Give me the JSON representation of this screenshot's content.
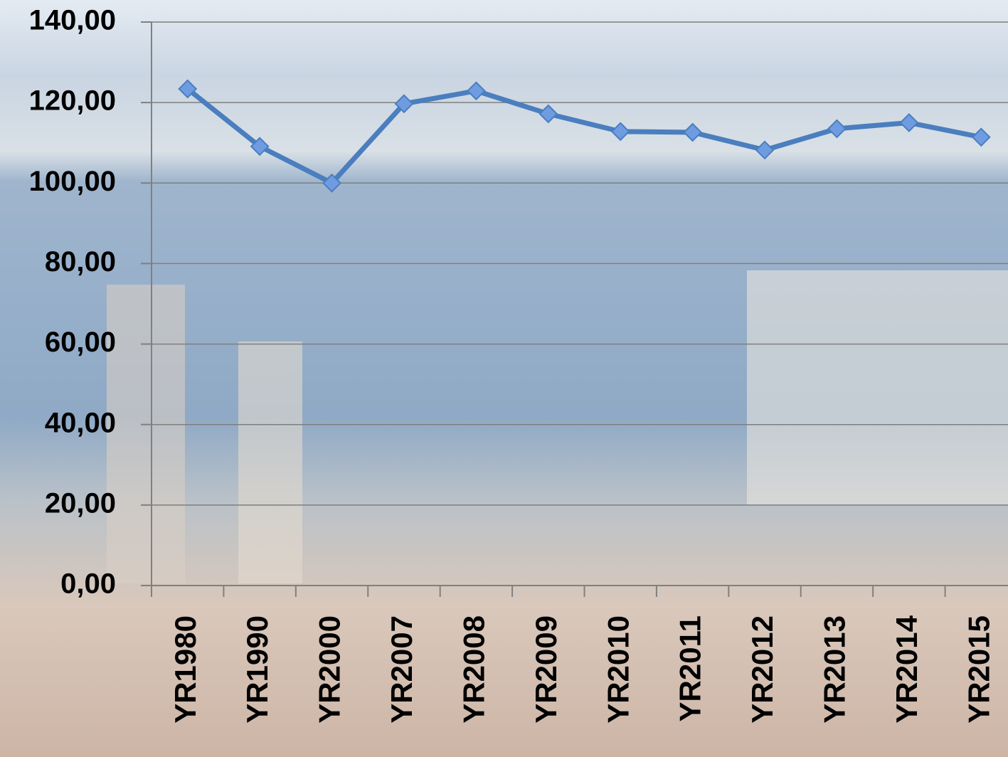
{
  "chart_data": {
    "type": "line",
    "categories": [
      "YR1980",
      "YR1990",
      "YR2000",
      "YR2007",
      "YR2008",
      "YR2009",
      "YR2010",
      "YR2011",
      "YR2012",
      "YR2013",
      "YR2014",
      "YR2015"
    ],
    "series": [
      {
        "color": "#4a7ebf",
        "values": [
          123.4,
          109.1,
          100,
          119.7,
          122.9,
          117.2,
          112.8,
          112.6,
          108.2,
          113.5,
          115,
          111.4
        ]
      }
    ],
    "ylim": [
      0,
      140
    ],
    "yticks": [
      {
        "value": 0,
        "label": "0,00"
      },
      {
        "value": 20,
        "label": "20,00"
      },
      {
        "value": 40,
        "label": "40,00"
      },
      {
        "value": 60,
        "label": "60,00"
      },
      {
        "value": 80,
        "label": "80,00"
      },
      {
        "value": 100,
        "label": "100,00"
      },
      {
        "value": 120,
        "label": "120,00"
      },
      {
        "value": 140,
        "label": "140,00"
      }
    ],
    "grid": true
  }
}
